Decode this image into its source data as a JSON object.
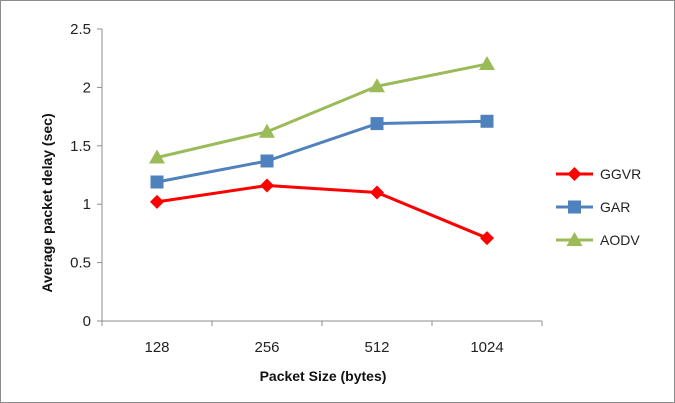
{
  "chart_data": {
    "type": "line",
    "categories": [
      "128",
      "256",
      "512",
      "1024"
    ],
    "xlabel": "Packet Size (bytes)",
    "ylabel": "Average packet delay (sec)",
    "ylim": [
      0,
      2.5
    ],
    "yticks": [
      "0",
      "0.5",
      "1",
      "1.5",
      "2",
      "2.5"
    ],
    "grid": false,
    "legend": "right",
    "series": [
      {
        "name": "GGVR",
        "values": [
          1.02,
          1.16,
          1.1,
          0.71
        ],
        "color": "#ff0000",
        "marker": "diamond"
      },
      {
        "name": "GAR",
        "values": [
          1.19,
          1.37,
          1.69,
          1.71
        ],
        "color": "#4f81bd",
        "marker": "square"
      },
      {
        "name": "AODV",
        "values": [
          1.4,
          1.62,
          2.01,
          2.2
        ],
        "color": "#9bbb59",
        "marker": "triangle"
      }
    ]
  }
}
